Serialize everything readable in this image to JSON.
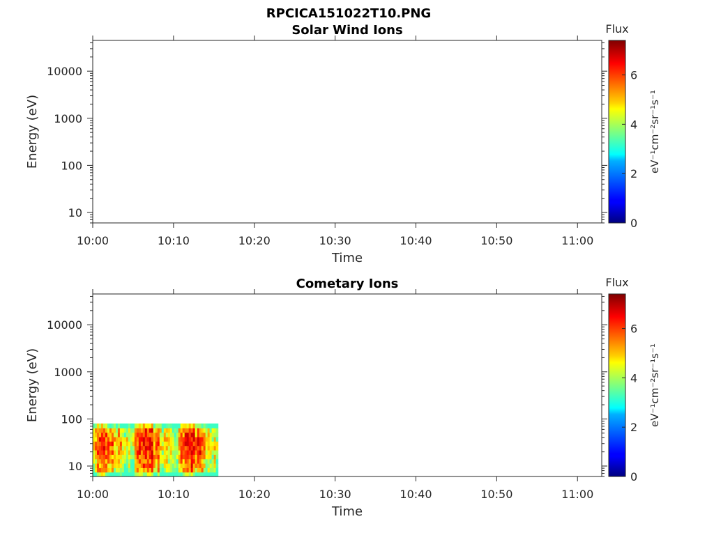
{
  "figure": {
    "title": "RPCICA151022T10.PNG"
  },
  "chart_data": [
    {
      "type": "heatmap",
      "title": "Solar Wind Ions",
      "xlabel": "Time",
      "ylabel": "Energy (eV)",
      "x_tick_labels": [
        "10:00",
        "10:10",
        "10:20",
        "10:30",
        "10:40",
        "10:50",
        "11:00"
      ],
      "y_tick_labels": [
        "10",
        "100",
        "1000",
        "10000"
      ],
      "y_scale": "log",
      "ylim": [
        6,
        45000
      ],
      "xlim": [
        "10:00",
        "11:03"
      ],
      "colorbar": {
        "label": "Flux",
        "units": "eV⁻¹cm⁻²sr⁻¹s⁻¹",
        "ticks": [
          "0",
          "2",
          "4",
          "6"
        ],
        "range": [
          0,
          7.4
        ],
        "colormap": "jet"
      },
      "data_segments": []
    },
    {
      "type": "heatmap",
      "title": "Cometary Ions",
      "xlabel": "Time",
      "ylabel": "Energy (eV)",
      "x_tick_labels": [
        "10:00",
        "10:10",
        "10:20",
        "10:30",
        "10:40",
        "10:50",
        "11:00"
      ],
      "y_tick_labels": [
        "10",
        "100",
        "1000",
        "10000"
      ],
      "y_scale": "log",
      "ylim": [
        6,
        45000
      ],
      "xlim": [
        "10:00",
        "11:03"
      ],
      "colorbar": {
        "label": "Flux",
        "units": "eV⁻¹cm⁻²sr⁻¹s⁻¹",
        "ticks": [
          "0",
          "2",
          "4",
          "6"
        ],
        "range": [
          0,
          7.4
        ],
        "colormap": "jet"
      },
      "data_segments": [
        {
          "time_start": "10:00",
          "time_end": "10:15.5",
          "energy_min": 6,
          "energy_max": 80,
          "flux_typical": 5.5,
          "flux_peak": 6.8
        }
      ]
    }
  ]
}
